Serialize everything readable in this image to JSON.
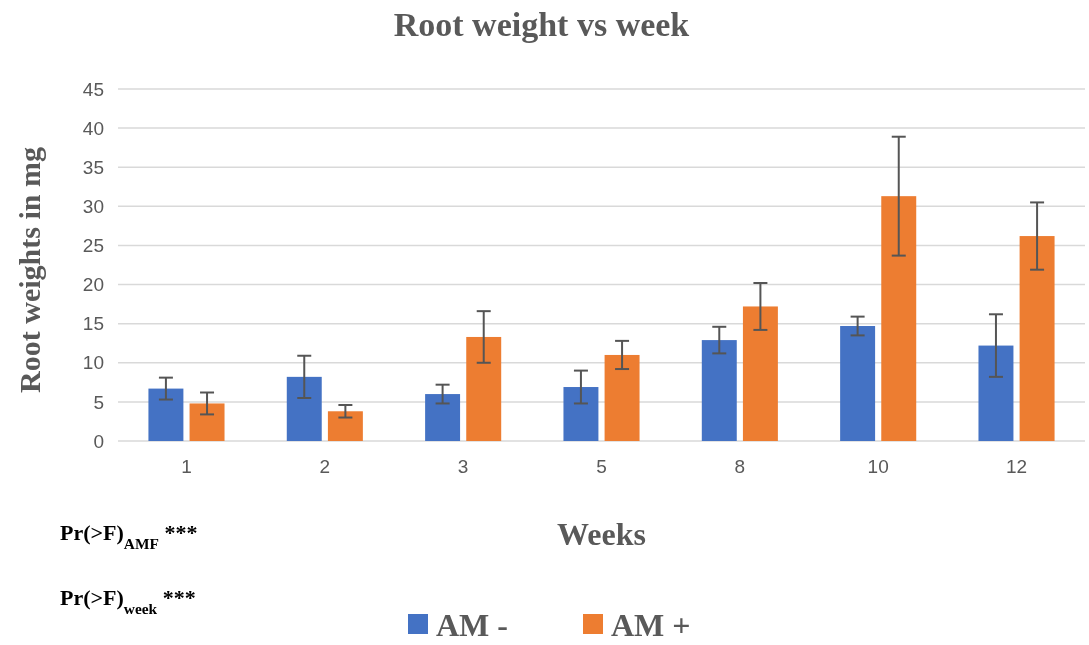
{
  "chart_data": {
    "type": "bar",
    "title": "Root weight vs week",
    "xlabel": "Weeks",
    "ylabel": "Root weights in mg",
    "categories": [
      "1",
      "2",
      "3",
      "5",
      "8",
      "10",
      "12"
    ],
    "series": [
      {
        "name": "AM -",
        "color": "#4472c4",
        "values": [
          6.7,
          8.2,
          6.0,
          6.9,
          12.9,
          14.7,
          12.2
        ],
        "errors": [
          1.4,
          2.7,
          1.2,
          2.1,
          1.7,
          1.2,
          4.0
        ]
      },
      {
        "name": "AM +",
        "color": "#ed7d31",
        "values": [
          4.8,
          3.8,
          13.3,
          11.0,
          17.2,
          31.3,
          26.2
        ],
        "errors": [
          1.4,
          0.8,
          3.3,
          1.8,
          3.0,
          7.6,
          4.3
        ]
      }
    ],
    "ylim": [
      0,
      45
    ],
    "yticks": [
      0,
      5,
      10,
      15,
      20,
      25,
      30,
      35,
      40,
      45
    ],
    "grid": "y",
    "legend": "bottom",
    "annotations": [
      "Pr(>F)$_{AMF}$ ***",
      "Pr(>F)$_{week}$ ***"
    ]
  }
}
